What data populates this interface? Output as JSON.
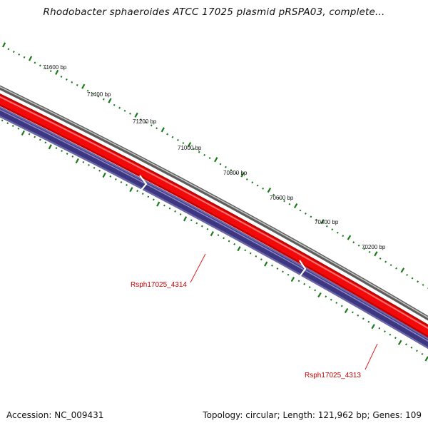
{
  "title": "Rhodobacter sphaeroides ATCC 17025 plasmid pRSPA03, complete...",
  "scale_labels": [
    "71600 bp",
    "71400 bp",
    "71200 bp",
    "71000 bp",
    "70800 bp",
    "70600 bp",
    "70400 bp",
    "70200 bp"
  ],
  "genes": [
    {
      "label": "Rsph17025_4314",
      "strand": "forward"
    },
    {
      "label": "Rsph17025_4313",
      "strand": "forward"
    }
  ],
  "footer": {
    "accession": "Accession: NC_009431",
    "summary": "Topology: circular; Length: 121,962 bp; Genes: 109"
  },
  "colors": {
    "backbone": "#8a8a8a",
    "forward_cds": "#e01010",
    "orf_track": "#4a4590",
    "ticks": "#1a7a1a",
    "gene_label": "#cc0000"
  }
}
